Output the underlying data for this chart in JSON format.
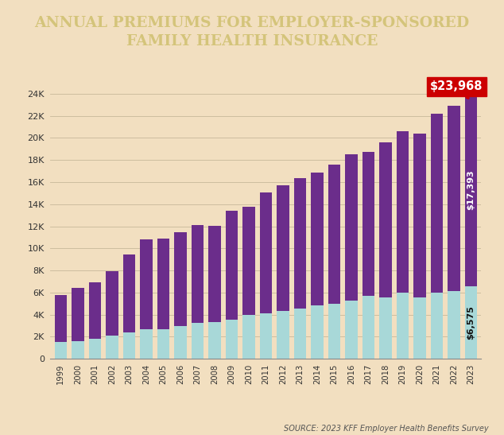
{
  "years": [
    "1999",
    "2000",
    "2001",
    "2002",
    "2003",
    "2004",
    "2005",
    "2006",
    "2007",
    "2008",
    "2009",
    "2010",
    "2011",
    "2012",
    "2013",
    "2014",
    "2015",
    "2016",
    "2017",
    "2018",
    "2019",
    "2020",
    "2021",
    "2022",
    "2023"
  ],
  "worker": [
    1543,
    1619,
    1787,
    2084,
    2412,
    2661,
    2713,
    2973,
    3281,
    3354,
    3515,
    3997,
    4129,
    4316,
    4565,
    4823,
    4955,
    5277,
    5714,
    5547,
    6015,
    5588,
    5969,
    6106,
    6575
  ],
  "employer": [
    4247,
    4819,
    5151,
    5866,
    7061,
    8167,
    8167,
    8508,
    8824,
    8693,
    9860,
    9773,
    10944,
    11429,
    11786,
    12011,
    12591,
    13270,
    13049,
    14069,
    14561,
    14787,
    16253,
    16782,
    17393
  ],
  "worker_color": "#a8d8d8",
  "employer_color": "#6b2d8b",
  "bg_color": "#f2dfc0",
  "title_bg_color": "#111111",
  "title_text_color": "#d4c47a",
  "title": "ANNUAL PREMIUMS FOR EMPLOYER-SPONSORED\nFAMILY HEALTH INSURANCE",
  "callout_total": "$23,968",
  "callout_worker": "$6,575",
  "callout_employer": "$17,393",
  "callout_bg": "#cc0000",
  "source_text": "SOURCE: 2023 KFF Employer Health Benefits Survey",
  "ylim": [
    0,
    25000
  ],
  "yticks": [
    0,
    2000,
    4000,
    6000,
    8000,
    10000,
    12000,
    14000,
    16000,
    18000,
    20000,
    22000,
    24000
  ],
  "ytick_labels": [
    "0",
    "2K",
    "4K",
    "6K",
    "8K",
    "10K",
    "12K",
    "14K",
    "16K",
    "18K",
    "20K",
    "22K",
    "24K"
  ]
}
